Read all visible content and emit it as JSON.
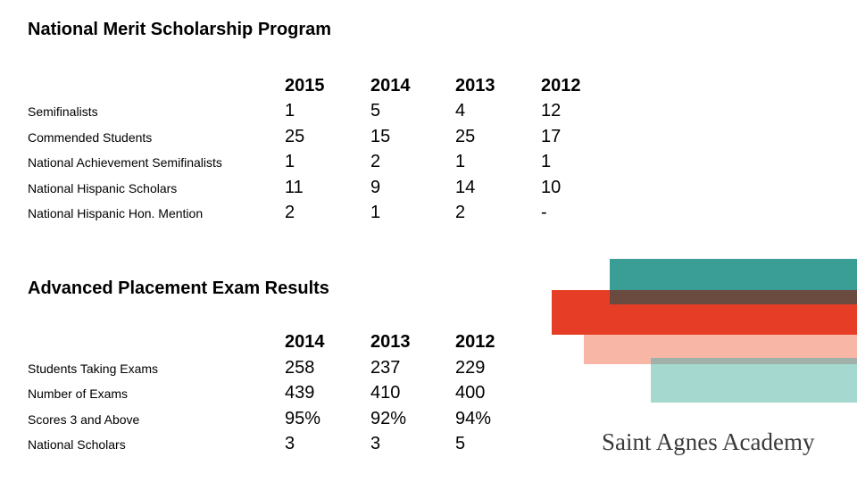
{
  "merit": {
    "title": "National Merit Scholarship Program",
    "years": [
      "2015",
      "2014",
      "2013",
      "2012"
    ],
    "rows": [
      {
        "label": "Semifinalists",
        "values": [
          "1",
          "5",
          "4",
          "12"
        ]
      },
      {
        "label": "Commended Students",
        "values": [
          "25",
          "15",
          "25",
          "17"
        ]
      },
      {
        "label": "National Achievement Semifinalists",
        "values": [
          "1",
          "2",
          "1",
          "1"
        ]
      },
      {
        "label": "National Hispanic Scholars",
        "values": [
          "11",
          "9",
          "14",
          "10"
        ]
      },
      {
        "label": "National Hispanic Hon. Mention",
        "values": [
          "2",
          "1",
          "2",
          "-"
        ]
      }
    ]
  },
  "ap": {
    "title": "Advanced Placement Exam Results",
    "years": [
      "2014",
      "2013",
      "2012"
    ],
    "rows": [
      {
        "label": "Students Taking Exams",
        "values": [
          "258",
          "237",
          "229"
        ]
      },
      {
        "label": "Number of Exams",
        "values": [
          "439",
          "410",
          "400"
        ]
      },
      {
        "label": "Scores 3 and Above",
        "values": [
          "95%",
          "92%",
          "94%"
        ]
      },
      {
        "label": "National Scholars",
        "values": [
          "3",
          "3",
          "5"
        ]
      }
    ]
  },
  "logo": {
    "text": "Saint Agnes Academy",
    "colors": [
      "#3a9e96",
      "#e63e26",
      "#f7b6a6",
      "#a5d9cf",
      "#6b4a3f"
    ]
  }
}
